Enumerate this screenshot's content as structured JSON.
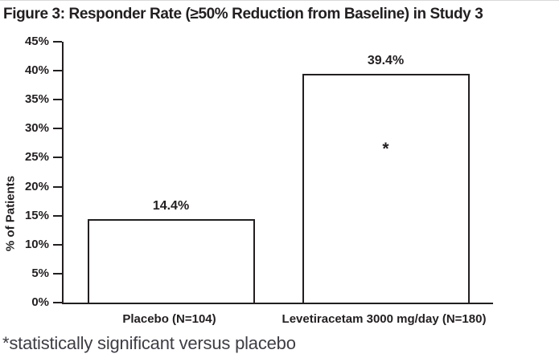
{
  "chart_data": {
    "type": "bar",
    "title": "Figure 3: Responder Rate (≥50% Reduction from Baseline) in Study 3",
    "categories": [
      "Placebo (N=104)",
      "Levetiracetam 3000 mg/day (N=180)"
    ],
    "values": [
      14.4,
      39.4
    ],
    "value_labels": [
      "14.4%",
      "39.4%"
    ],
    "ylabel": "% of Patients",
    "ylim": [
      0,
      45
    ],
    "ytick_step": 5,
    "ytick_suffix": "%",
    "grid": false,
    "legend": "none",
    "bar_fill": "#ffffff",
    "bar_border": "#231f20",
    "annotations": [
      {
        "text": "*",
        "bar_index": 1,
        "value": 26.5
      }
    ],
    "footnote": "*statistically significant versus placebo"
  }
}
